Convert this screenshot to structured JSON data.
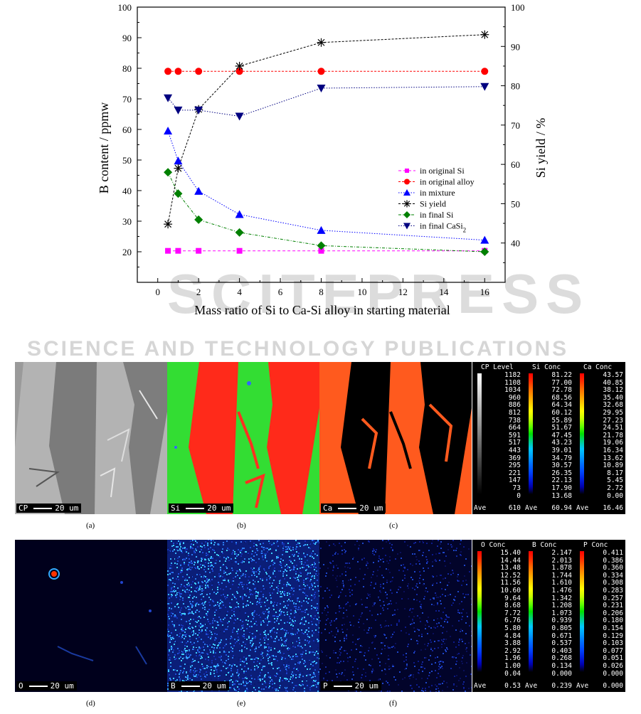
{
  "chart_data": {
    "type": "line",
    "xlabel": "Mass ratio of Si to Ca-Si alloy in starting material",
    "ylabel": "B content / ppmw",
    "y2label": "Si yield / %",
    "xlim": [
      -1,
      17
    ],
    "ylim": [
      10,
      100
    ],
    "y2lim": [
      30,
      100
    ],
    "xticks": [
      "0",
      "2",
      "4",
      "6",
      "8",
      "10",
      "12",
      "14",
      "16"
    ],
    "yticks": [
      "20",
      "30",
      "40",
      "50",
      "60",
      "70",
      "80",
      "90",
      "100"
    ],
    "y2ticks": [
      "40",
      "50",
      "60",
      "70",
      "80",
      "90",
      "100"
    ],
    "legend_position": "right",
    "series": [
      {
        "name": "in original Si",
        "axis": "left",
        "marker": "square",
        "color": "#ff00ff",
        "x": [
          0.5,
          1,
          2,
          4,
          8,
          16
        ],
        "y": [
          20.3,
          20.3,
          20.3,
          20.3,
          20.3,
          20.3
        ]
      },
      {
        "name": "in original alloy",
        "axis": "left",
        "marker": "circle",
        "color": "#ff0000",
        "x": [
          0.5,
          1,
          2,
          4,
          8,
          16
        ],
        "y": [
          79,
          79,
          79,
          79,
          79,
          79
        ]
      },
      {
        "name": "in mixture",
        "axis": "left",
        "marker": "triangle",
        "color": "#0000ff",
        "x": [
          0.5,
          1,
          2,
          4,
          8,
          16
        ],
        "y": [
          59.5,
          49.7,
          39.8,
          32.2,
          27,
          23.8
        ]
      },
      {
        "name": "Si yield",
        "axis": "right",
        "marker": "star",
        "color": "#000000",
        "x": [
          0.5,
          1,
          2,
          4,
          8,
          16
        ],
        "y": [
          44.8,
          59,
          74,
          85,
          91,
          93
        ]
      },
      {
        "name": "in final Si",
        "axis": "left",
        "marker": "diamond",
        "color": "#008000",
        "x": [
          0.5,
          1,
          2,
          4,
          8,
          16
        ],
        "y": [
          46,
          39,
          30.5,
          26.3,
          22,
          20
        ]
      },
      {
        "name": "in final CaSi",
        "name_sub": "2",
        "axis": "left",
        "marker": "triangle-down",
        "color": "#000080",
        "x": [
          0.5,
          1,
          2,
          4,
          8,
          16
        ],
        "y": [
          70.3,
          66.3,
          66.3,
          64.3,
          73.5,
          74
        ]
      }
    ]
  },
  "watermark": {
    "main": "SCITEPRESS",
    "sub": "SCIENCE AND TECHNOLOGY PUBLICATIONS"
  },
  "maps": [
    {
      "id": "a",
      "label": "CP",
      "scale": "20 um",
      "caption": "(a)"
    },
    {
      "id": "b",
      "label": "Si",
      "scale": "20 um",
      "caption": "(b)"
    },
    {
      "id": "c",
      "label": "Ca",
      "scale": "20 um",
      "caption": "(c)"
    },
    {
      "id": "d",
      "label": "O",
      "scale": "20 um",
      "caption": "(d)"
    },
    {
      "id": "e",
      "label": "B",
      "scale": "20 um",
      "caption": "(e)"
    },
    {
      "id": "f",
      "label": "P",
      "scale": "20 um",
      "caption": "(f)"
    }
  ],
  "scales_top": [
    {
      "title": "CP Level",
      "values": [
        "1182",
        "1108",
        "1034",
        "960",
        "886",
        "812",
        "738",
        "664",
        "591",
        "517",
        "443",
        "369",
        "295",
        "221",
        "147",
        "73",
        "0"
      ],
      "ave_label": "Ave",
      "ave": "610",
      "gray": true
    },
    {
      "title": "Si Conc",
      "values": [
        "81.22",
        "77.00",
        "72.78",
        "68.56",
        "64.34",
        "60.12",
        "55.89",
        "51.67",
        "47.45",
        "43.23",
        "39.01",
        "34.79",
        "30.57",
        "26.35",
        "22.13",
        "17.90",
        "13.68"
      ],
      "ave_label": "Ave",
      "ave": "60.94",
      "gray": false
    },
    {
      "title": "Ca Conc",
      "values": [
        "43.57",
        "40.85",
        "38.12",
        "35.40",
        "32.68",
        "29.95",
        "27.23",
        "24.51",
        "21.78",
        "19.06",
        "16.34",
        "13.62",
        "10.89",
        "8.17",
        "5.45",
        "2.72",
        "0.00"
      ],
      "ave_label": "Ave",
      "ave": "16.46",
      "gray": false
    }
  ],
  "scales_bottom": [
    {
      "title": "O  Conc",
      "values": [
        "15.40",
        "14.44",
        "13.48",
        "12.52",
        "11.56",
        "10.60",
        "9.64",
        "8.68",
        "7.72",
        "6.76",
        "5.80",
        "4.84",
        "3.88",
        "2.92",
        "1.96",
        "1.00",
        "0.04"
      ],
      "ave_label": "Ave",
      "ave": "0.53",
      "gray": false
    },
    {
      "title": "B  Conc",
      "values": [
        "2.147",
        "2.013",
        "1.878",
        "1.744",
        "1.610",
        "1.476",
        "1.342",
        "1.208",
        "1.073",
        "0.939",
        "0.805",
        "0.671",
        "0.537",
        "0.403",
        "0.268",
        "0.134",
        "0.000"
      ],
      "ave_label": "Ave",
      "ave": "0.239",
      "gray": false
    },
    {
      "title": "P  Conc",
      "values": [
        "0.411",
        "0.386",
        "0.360",
        "0.334",
        "0.308",
        "0.283",
        "0.257",
        "0.231",
        "0.206",
        "0.180",
        "0.154",
        "0.129",
        "0.103",
        "0.077",
        "0.051",
        "0.026",
        "0.000"
      ],
      "ave_label": "Ave",
      "ave": "0.000",
      "gray": false
    }
  ]
}
